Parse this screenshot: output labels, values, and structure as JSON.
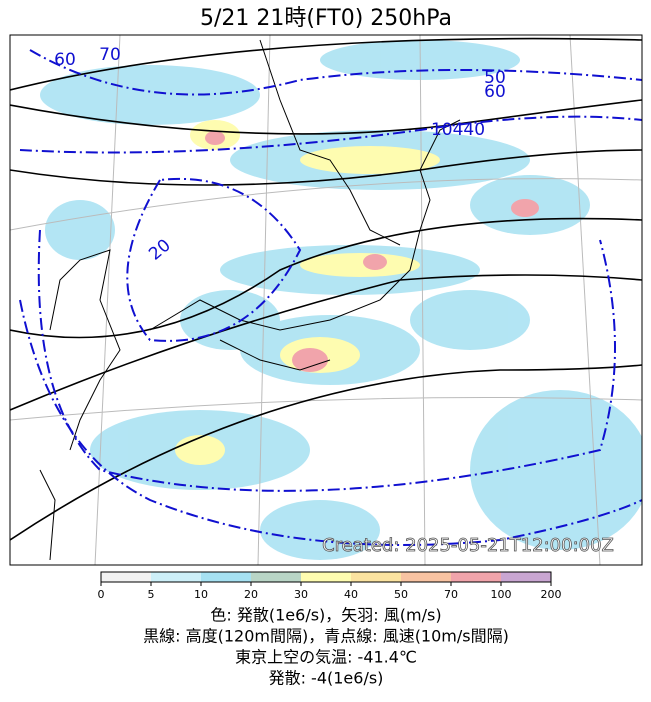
{
  "title": "5/21  21時(FT0)    250hPa",
  "created": "Created: 2025-05-21T12:00:00Z",
  "contour_labels": [
    "60",
    "70",
    "20",
    "50",
    "60",
    "10440"
  ],
  "colorbar": {
    "ticks": [
      0,
      5,
      10,
      20,
      30,
      40,
      50,
      70,
      100,
      200
    ],
    "colors": [
      "#f2f2f2",
      "#cdeff8",
      "#a6e1f2",
      "#b9d5c6",
      "#fefcb0",
      "#fbe3a0",
      "#f8c3a2",
      "#f1a4ab",
      "#c9a6d2"
    ]
  },
  "captions": [
    "色: 発散(1e6/s)，矢羽: 風(m/s)",
    "黒線: 高度(120m間隔)，青点線: 風速(10m/s間隔)",
    "東京上空の気温: -41.4℃",
    "発散: -4(1e6/s)"
  ]
}
